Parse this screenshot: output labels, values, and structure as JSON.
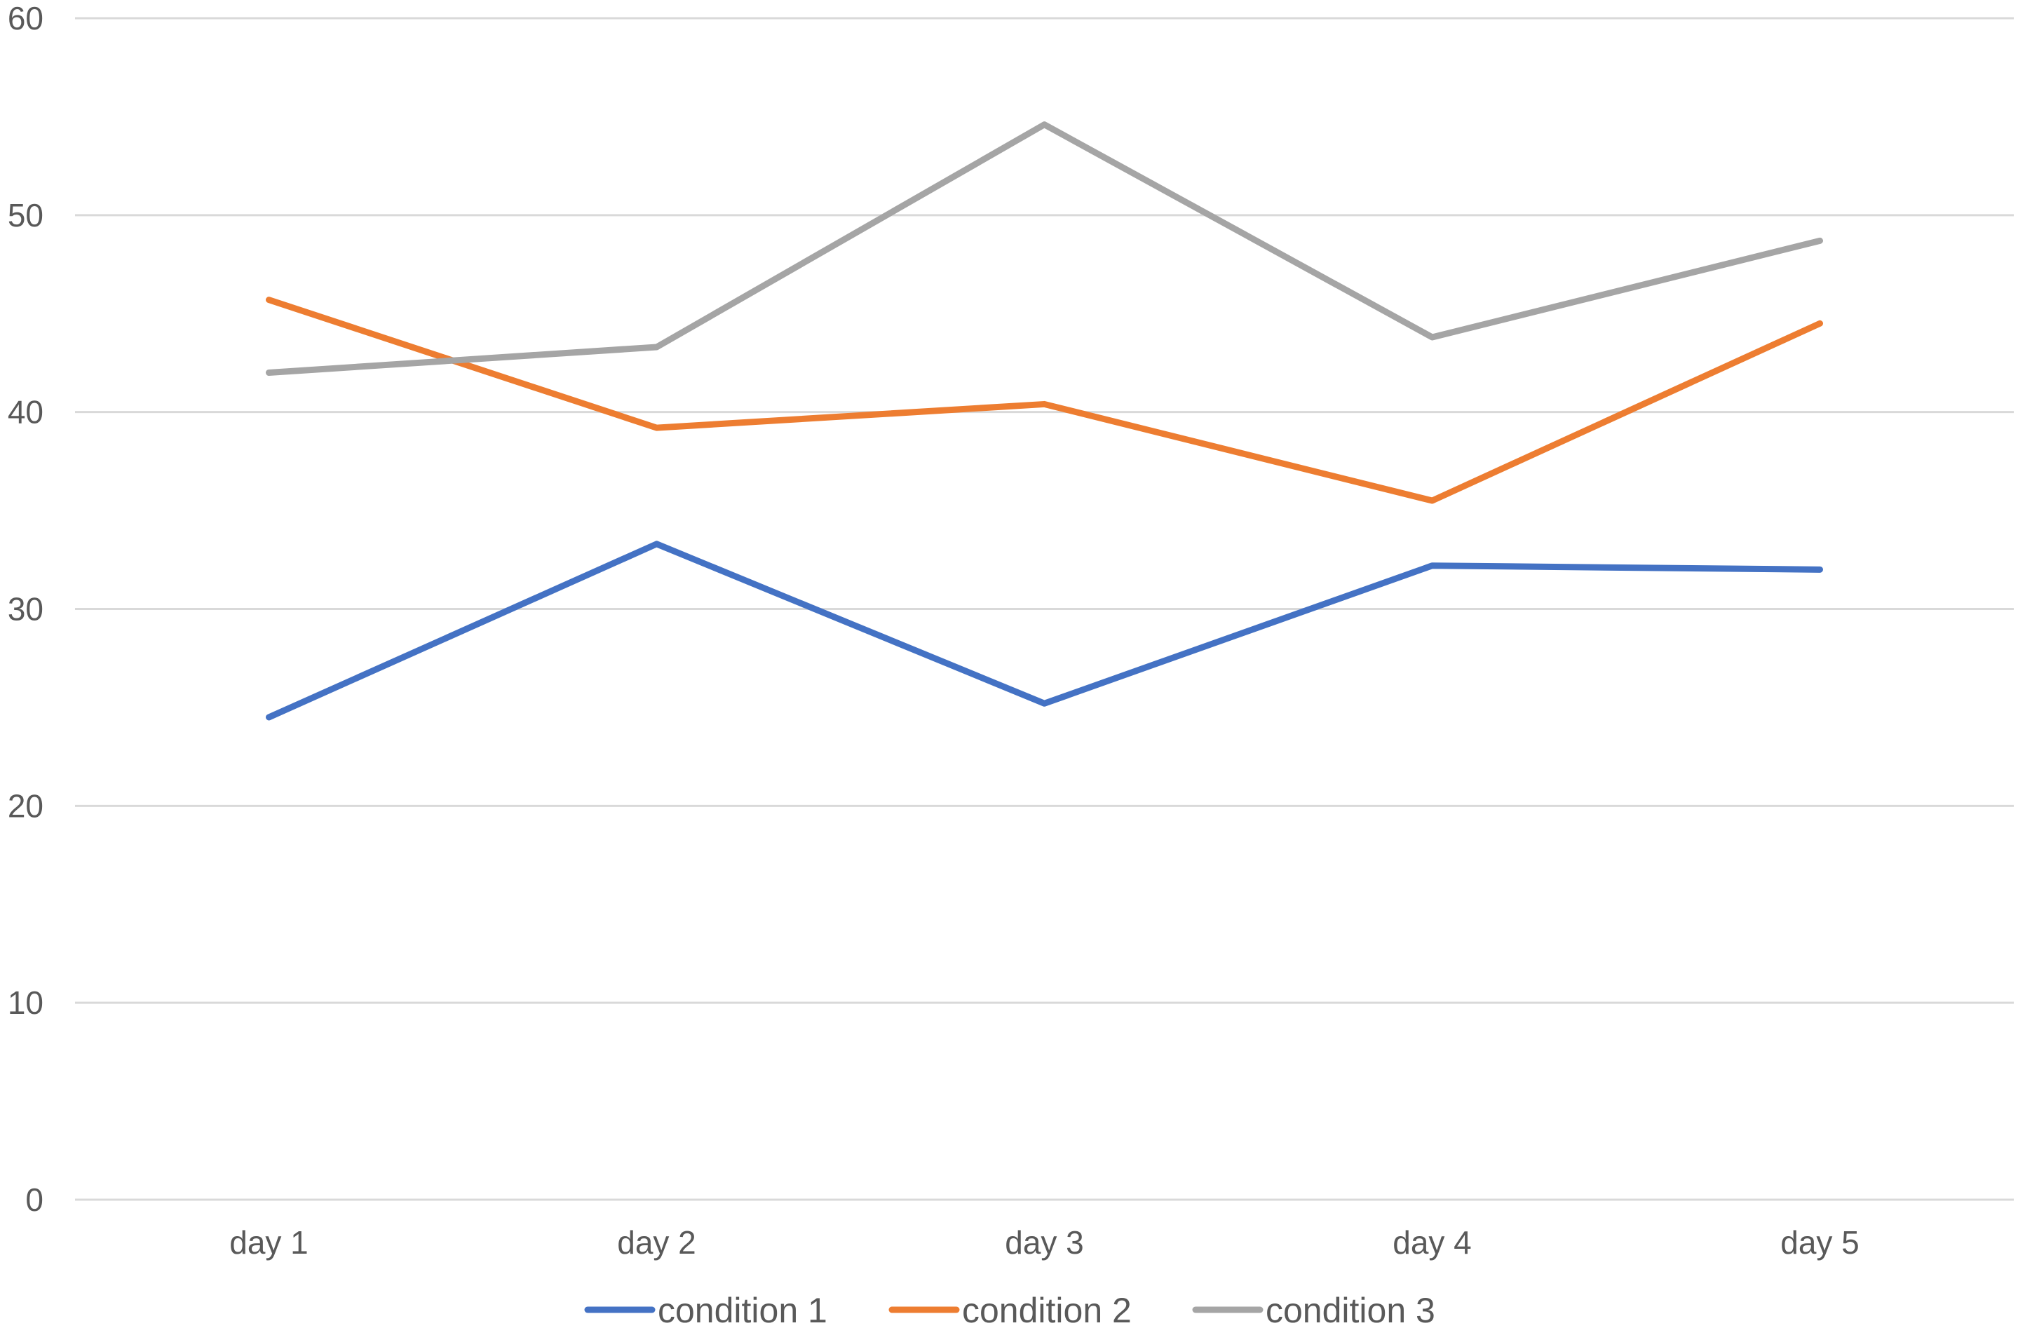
{
  "chart_data": {
    "type": "line",
    "title": "",
    "xlabel": "",
    "ylabel": "",
    "categories": [
      "day 1",
      "day 2",
      "day 3",
      "day 4",
      "day 5"
    ],
    "ylim": [
      0,
      60
    ],
    "yticks": [
      0,
      10,
      20,
      30,
      40,
      50,
      60
    ],
    "ytick_labels": [
      "0",
      "10",
      "20",
      "30",
      "40",
      "50",
      "60"
    ],
    "grid": true,
    "legend_position": "bottom",
    "series": [
      {
        "name": "condition 1",
        "color": "#4472C4",
        "values": [
          24.5,
          33.3,
          25.2,
          32.2,
          32.0
        ]
      },
      {
        "name": "condition 2",
        "color": "#ED7D31",
        "values": [
          45.7,
          39.2,
          40.4,
          35.5,
          44.5
        ]
      },
      {
        "name": "condition 3",
        "color": "#A5A5A5",
        "values": [
          42.0,
          43.3,
          54.6,
          43.8,
          48.7
        ]
      }
    ],
    "gridline_color": "#D9D9D9"
  }
}
